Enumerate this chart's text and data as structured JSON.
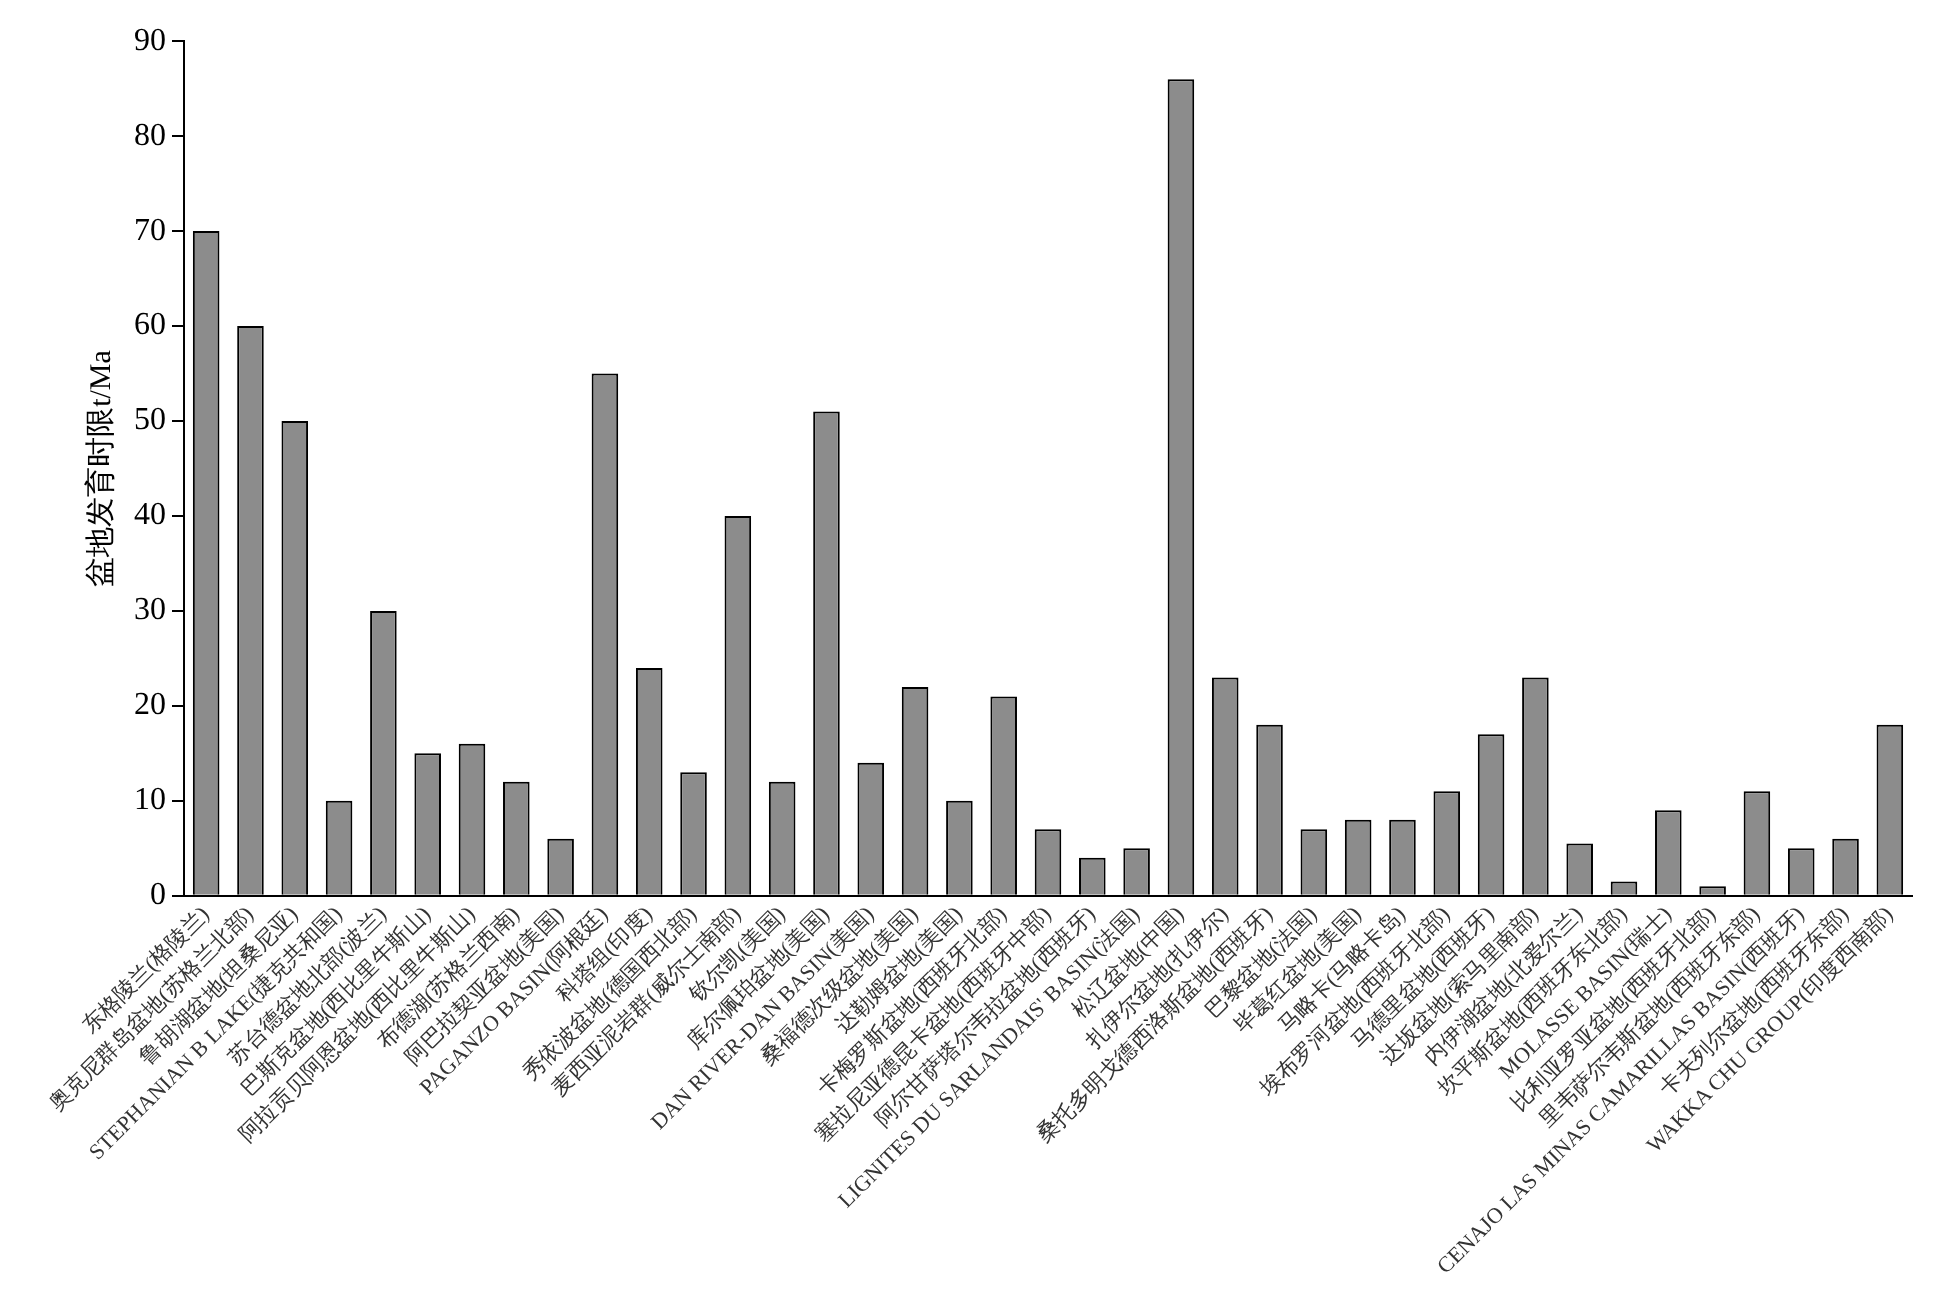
{
  "chart_data": {
    "type": "bar",
    "ylabel": "盆地发育时限t/Ma",
    "categories": [
      "东格陵兰(格陵兰)",
      "奥克尼群岛盆地(苏格兰北部)",
      "鲁胡湖盆地(坦桑尼亚)",
      "STEPHANIAN B LAKE(捷克共和国)",
      "苏台德盆地北部(波兰)",
      "巴斯克盆地(西比里牛斯山)",
      "阿拉贡贝阿恩盆地(西比里牛斯山)",
      "布德湖(苏格兰西南)",
      "阿巴拉契亚盆地(美国)",
      "PAGANZO BASIN(阿根廷)",
      "科塔组(印度)",
      "秀依波盆地(德国西北部)",
      "麦西亚泥岩群(威尔士南部)",
      "钦尔凯(美国)",
      "库尔佩珀盆地(美国)",
      "DAN RIVER-DAN BASIN(美国)",
      "桑福德次级盆地(美国)",
      "达勒姆盆地(美国)",
      "卡梅罗斯盆地(西班牙北部)",
      "塞拉尼亚德昆卡盆地(西班牙中部)",
      "阿尔甘萨塔尔韦拉盆地(西班牙)",
      "LIGNITES DU SARLANDAIS' BASIN(法国)",
      "松辽盆地(中国)",
      "扎伊尔盆地(扎伊尔)",
      "桑托多明戈德西洛斯盆地(西班牙)",
      "巴黎盆地(法国)",
      "毕葛红盆地(美国)",
      "马略卡(马略卡岛)",
      "埃布罗河盆地(西班牙北部)",
      "马德里盆地(西班牙)",
      "达坂盆地(索马里南部)",
      "内伊湖盆地(北爱尔兰)",
      "坎平斯盆地(西班牙东北部)",
      "MOLASSE BASIN(瑞士)",
      "比利亚罗亚盆地(西班牙北部)",
      "里韦萨尔韦斯盆地(西班牙东部)",
      "CENAJO LAS MINAS CAMARILLAS BASIN(西班牙)",
      "卡夫列尔盆地(西班牙东部)",
      "WAKKA CHU GROUP(印度西南部)"
    ],
    "values": [
      70,
      60,
      50,
      10,
      30,
      15,
      16,
      12,
      6,
      55,
      24,
      13,
      40,
      12,
      51,
      14,
      22,
      10,
      21,
      7,
      4,
      5,
      86,
      23,
      18,
      7,
      8,
      8,
      11,
      17,
      23,
      5.5,
      1.5,
      9,
      1,
      11,
      5,
      6,
      18
    ],
    "color": "#8c8c8c",
    "ylim": [
      0,
      90
    ],
    "yticks": [
      0,
      10,
      20,
      30,
      40,
      50,
      60,
      70,
      80,
      90
    ],
    "grid": false,
    "legend": false
  }
}
